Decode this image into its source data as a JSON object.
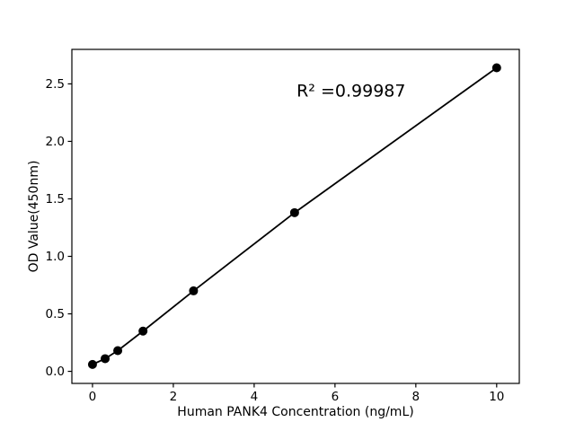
{
  "figure": {
    "background": "#ffffff",
    "border_color": "#000000"
  },
  "chart_data": {
    "type": "scatter",
    "title": "",
    "xlabel": "Human PANK4 Concentration (ng/mL)",
    "ylabel": "OD Value(450nm)",
    "annotation": {
      "text": "R² =0.99987",
      "x": 5.05,
      "y": 2.39
    },
    "x": [
      0,
      0.313,
      0.625,
      1.25,
      2.5,
      5,
      10
    ],
    "y": [
      0.06,
      0.11,
      0.18,
      0.35,
      0.7,
      1.38,
      2.64
    ],
    "xticks": [
      0,
      2,
      4,
      6,
      8,
      10
    ],
    "yticks": [
      0.0,
      0.5,
      1.0,
      1.5,
      2.0,
      2.5
    ],
    "xlim": [
      -0.51,
      10.56
    ],
    "ylim": [
      -0.105,
      2.8
    ],
    "grid": false,
    "legend": null,
    "marker_color": "#000000",
    "line_color": "#000000",
    "marker_radius": 5,
    "line_width": 1.8
  }
}
